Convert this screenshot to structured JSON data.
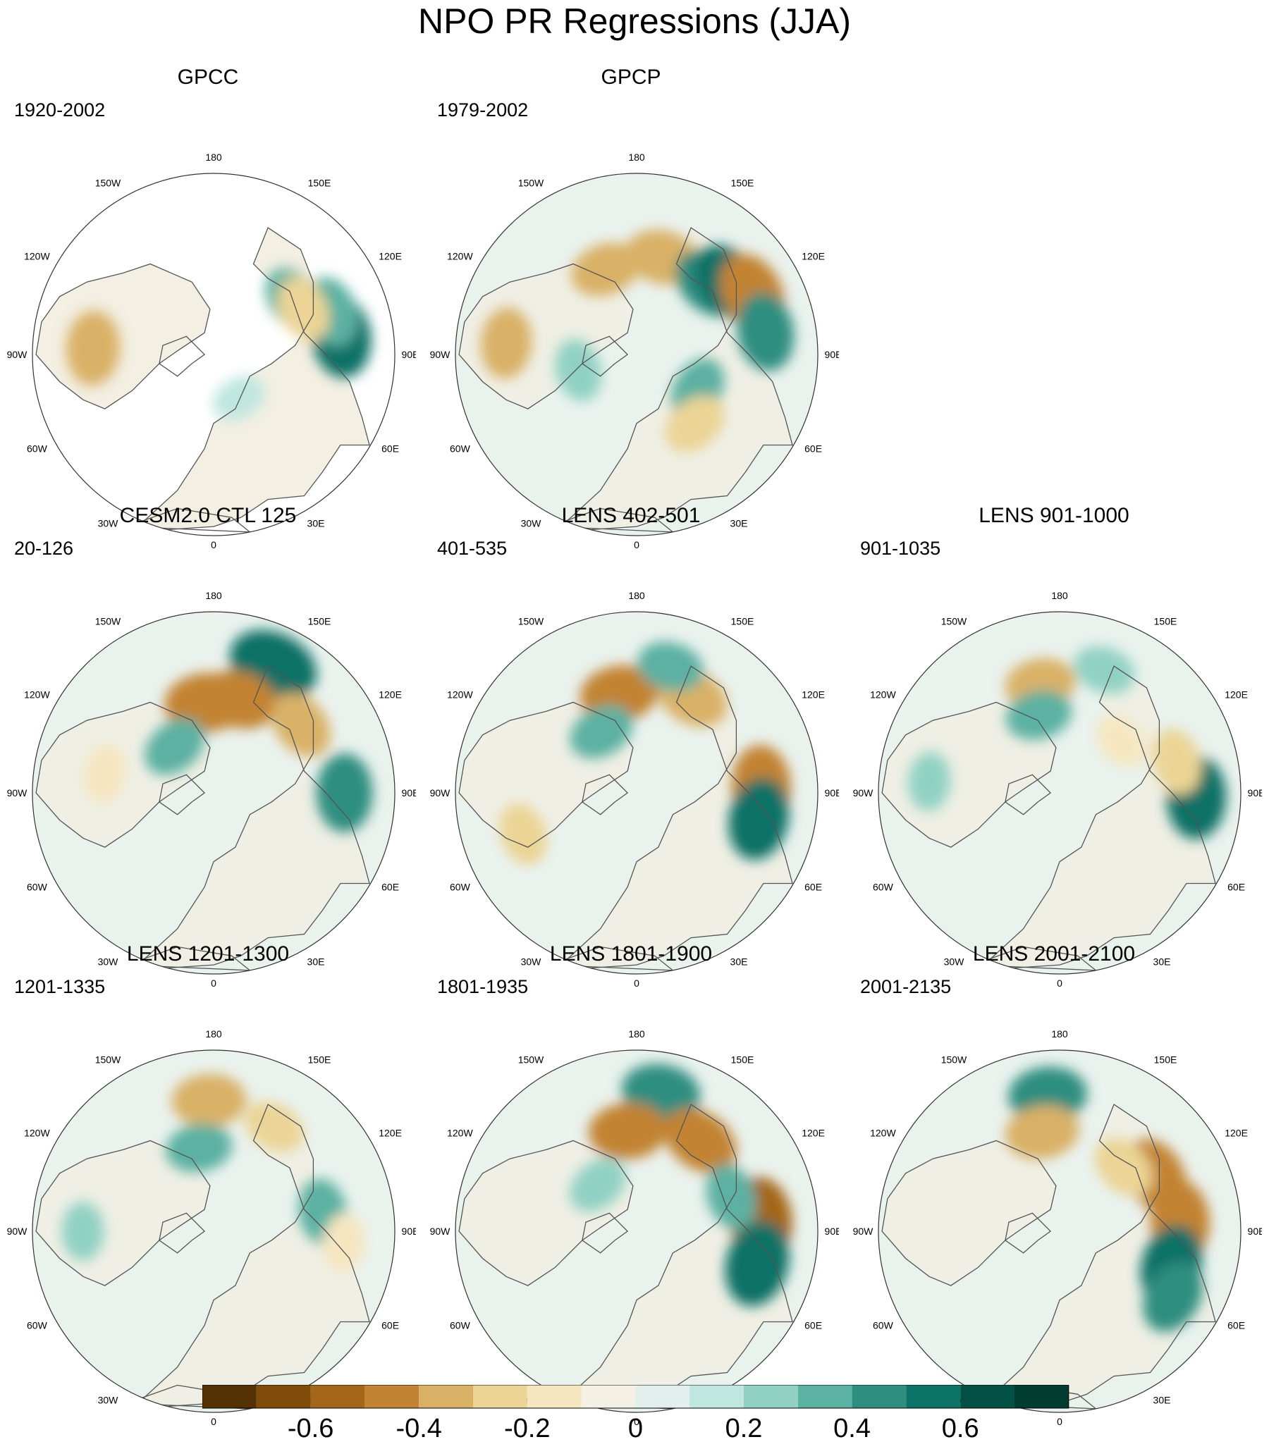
{
  "title": "NPO PR Regressions (JJA)",
  "map_labels": {
    "top": "180",
    "top_right": "150E",
    "right_upper": "120E",
    "right": "90E",
    "right_lower": "60E",
    "bottom_right": "30E",
    "bottom": "0",
    "bottom_left": "30W",
    "left_lower": "60W",
    "left": "90W",
    "left_upper": "120W",
    "top_left": "150W"
  },
  "panels": [
    {
      "title": "GPCC",
      "subtitle": "1920-2002",
      "masked": true,
      "features": [
        {
          "value": 0.5,
          "lon": 98,
          "lat": 26
        },
        {
          "value": 0.35,
          "lon": 110,
          "lat": 28
        },
        {
          "value": 0.3,
          "lon": 125,
          "lat": 42
        },
        {
          "value": -0.3,
          "lon": 117,
          "lat": 40
        },
        {
          "value": -0.4,
          "lon": -93,
          "lat": 30
        },
        {
          "value": 0.15,
          "lon": 30,
          "lat": 65
        }
      ]
    },
    {
      "title": "GPCP",
      "subtitle": "1979-2002",
      "masked": false,
      "features": [
        {
          "value": -0.4,
          "lon": 165,
          "lat": 40
        },
        {
          "value": 0.4,
          "lon": 135,
          "lat": 40
        },
        {
          "value": 0.5,
          "lon": 128,
          "lat": 32
        },
        {
          "value": -0.5,
          "lon": 118,
          "lat": 25
        },
        {
          "value": 0.45,
          "lon": 100,
          "lat": 25
        },
        {
          "value": -0.35,
          "lon": -160,
          "lat": 45
        },
        {
          "value": 0.3,
          "lon": 60,
          "lat": 55
        },
        {
          "value": -0.35,
          "lon": -95,
          "lat": 25
        },
        {
          "value": 0.25,
          "lon": -75,
          "lat": 60
        },
        {
          "value": -0.3,
          "lon": 40,
          "lat": 45
        }
      ]
    },
    {
      "title": "CESM2.0 CTL 125",
      "subtitle": "20-126",
      "masked": false,
      "features": [
        {
          "value": 0.6,
          "lon": 155,
          "lat": 20
        },
        {
          "value": -0.5,
          "lon": -175,
          "lat": 45
        },
        {
          "value": -0.45,
          "lon": 165,
          "lat": 42
        },
        {
          "value": -0.35,
          "lon": 128,
          "lat": 35
        },
        {
          "value": 0.45,
          "lon": 90,
          "lat": 25
        },
        {
          "value": 0.3,
          "lon": -140,
          "lat": 60
        },
        {
          "value": -0.2,
          "lon": -100,
          "lat": 35
        }
      ]
    },
    {
      "title": "LENS 402-501",
      "subtitle": "401-535",
      "masked": false,
      "features": [
        {
          "value": -0.45,
          "lon": -170,
          "lat": 40
        },
        {
          "value": -0.4,
          "lon": 150,
          "lat": 35
        },
        {
          "value": 0.3,
          "lon": 165,
          "lat": 25
        },
        {
          "value": 0.3,
          "lon": -150,
          "lat": 55
        },
        {
          "value": -0.5,
          "lon": 93,
          "lat": 28
        },
        {
          "value": 0.5,
          "lon": 78,
          "lat": 28
        },
        {
          "value": -0.25,
          "lon": -70,
          "lat": 30
        }
      ]
    },
    {
      "title": "LENS 901-1000",
      "subtitle": "901-1035",
      "masked": false,
      "features": [
        {
          "value": -0.35,
          "lon": -170,
          "lat": 35
        },
        {
          "value": 0.3,
          "lon": -165,
          "lat": 50
        },
        {
          "value": 0.25,
          "lon": 160,
          "lat": 25
        },
        {
          "value": 0.5,
          "lon": 88,
          "lat": 22
        },
        {
          "value": -0.3,
          "lon": 105,
          "lat": 30
        },
        {
          "value": 0.2,
          "lon": -95,
          "lat": 25
        },
        {
          "value": -0.2,
          "lon": 130,
          "lat": 50
        }
      ]
    },
    {
      "title": "LENS 1201-1300",
      "subtitle": "1201-1335",
      "masked": false,
      "features": [
        {
          "value": -0.4,
          "lon": -178,
          "lat": 25
        },
        {
          "value": 0.3,
          "lon": -170,
          "lat": 48
        },
        {
          "value": -0.25,
          "lon": 150,
          "lat": 30
        },
        {
          "value": 0.3,
          "lon": 100,
          "lat": 35
        },
        {
          "value": -0.2,
          "lon": 85,
          "lat": 25
        },
        {
          "value": 0.2,
          "lon": -90,
          "lat": 25
        }
      ]
    },
    {
      "title": "LENS 1801-1900",
      "subtitle": "1801-1935",
      "masked": false,
      "features": [
        {
          "value": 0.45,
          "lon": 170,
          "lat": 20
        },
        {
          "value": -0.45,
          "lon": -175,
          "lat": 40
        },
        {
          "value": -0.45,
          "lon": 145,
          "lat": 35
        },
        {
          "value": -0.55,
          "lon": 95,
          "lat": 28
        },
        {
          "value": 0.55,
          "lon": 75,
          "lat": 28
        },
        {
          "value": 0.3,
          "lon": 110,
          "lat": 40
        },
        {
          "value": 0.25,
          "lon": -140,
          "lat": 60
        }
      ]
    },
    {
      "title": "LENS 2001-2100",
      "subtitle": "2001-2135",
      "masked": false,
      "features": [
        {
          "value": 0.45,
          "lon": -175,
          "lat": 22
        },
        {
          "value": -0.4,
          "lon": -170,
          "lat": 40
        },
        {
          "value": -0.45,
          "lon": 120,
          "lat": 35
        },
        {
          "value": -0.5,
          "lon": 95,
          "lat": 30
        },
        {
          "value": 0.5,
          "lon": 73,
          "lat": 32
        },
        {
          "value": 0.4,
          "lon": 60,
          "lat": 25
        },
        {
          "value": -0.3,
          "lon": 135,
          "lat": 45
        }
      ]
    }
  ],
  "colorbar": {
    "colors": [
      "#543005",
      "#7f4c0a",
      "#a46619",
      "#c28333",
      "#d9b166",
      "#ebd495",
      "#f5e6c0",
      "#f5f0e4",
      "#e3efed",
      "#bfe6df",
      "#91d1c3",
      "#5bb1a2",
      "#2e8e80",
      "#0c7166",
      "#035044",
      "#003c30"
    ],
    "ticks": [
      {
        "value": -0.6,
        "label": "-0.6"
      },
      {
        "value": -0.4,
        "label": "-0.4"
      },
      {
        "value": -0.2,
        "label": "-0.2"
      },
      {
        "value": 0,
        "label": "0"
      },
      {
        "value": 0.2,
        "label": "0.2"
      },
      {
        "value": 0.4,
        "label": "0.4"
      },
      {
        "value": 0.6,
        "label": "0.6"
      }
    ]
  }
}
